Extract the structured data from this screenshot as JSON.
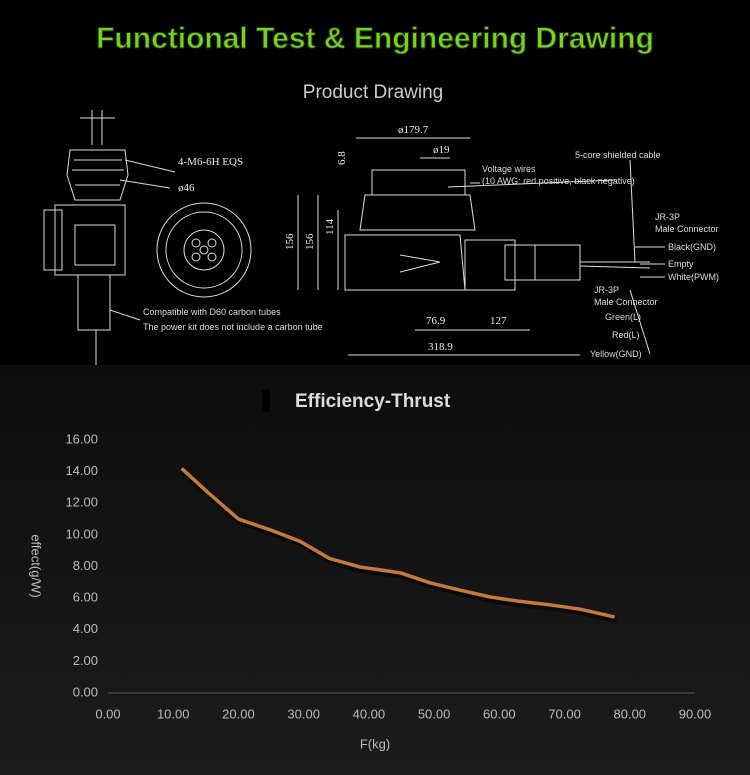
{
  "header": {
    "title": "Functional Test & Engineering Drawing"
  },
  "drawing": {
    "title": "Product Drawing",
    "labels": {
      "thread": "4-M6-6H EQS",
      "mount_dia": "ø46",
      "note1": "Compatible with D60 carbon tubes",
      "note2": "The power kit does not include a carbon tube",
      "dia_prop": "ø179.7",
      "dia_shaft": "ø19",
      "d68": "6.8",
      "h156a": "156",
      "h156b": "156",
      "h114": "114",
      "w769": "76.9",
      "w127": "127",
      "w3189": "318.9",
      "wires1": "Voltage wires",
      "wires2": "(10 AWG: red positive, black negative)",
      "cable": "5-core shielded cable",
      "jr1": "JR-3P",
      "jr1b": "Male Connector",
      "black": "Black(GND)",
      "empty": "Empty",
      "white": "White(PWM)",
      "jr2": "JR-3P",
      "jr2b": "Male Connector",
      "green": "Green(L)",
      "red": "Red(L)",
      "yellow": "Yellow(GND)"
    }
  },
  "chart_data": {
    "type": "line",
    "title": "Efficiency-Thrust",
    "x_label": "F(kg)",
    "y_label": "effect(g/W)",
    "x": [
      11.3,
      15,
      20,
      25,
      29.4,
      34,
      38.6,
      44.8,
      49.4,
      54,
      58.6,
      63,
      67.8,
      72.4,
      77.7
    ],
    "values": [
      14.2,
      12.8,
      11.0,
      10.3,
      9.6,
      8.5,
      7.97,
      7.6,
      6.96,
      6.5,
      6.07,
      5.8,
      5.57,
      5.3,
      4.8
    ],
    "color": "#c47a3c",
    "xlim": [
      0,
      90
    ],
    "ylim": [
      0,
      16
    ],
    "grid": false,
    "xticks": [
      {
        "value": 0,
        "label": "0.00"
      },
      {
        "value": 10,
        "label": "10.00"
      },
      {
        "value": 20,
        "label": "20.00"
      },
      {
        "value": 30,
        "label": "30.00"
      },
      {
        "value": 40,
        "label": "40.00"
      },
      {
        "value": 50,
        "label": "50.00"
      },
      {
        "value": 60,
        "label": "60.00"
      },
      {
        "value": 70,
        "label": "70.00"
      },
      {
        "value": 80,
        "label": "80.00"
      },
      {
        "value": 90,
        "label": "90.00"
      }
    ],
    "yticks": [
      {
        "value": 0,
        "label": "0.00"
      },
      {
        "value": 2,
        "label": "2.00"
      },
      {
        "value": 4,
        "label": "4.00"
      },
      {
        "value": 6,
        "label": "6.00"
      },
      {
        "value": 8,
        "label": "8.00"
      },
      {
        "value": 10,
        "label": "10.00"
      },
      {
        "value": 12,
        "label": "12.00"
      },
      {
        "value": 14,
        "label": "14.00"
      },
      {
        "value": 16,
        "label": "16.00"
      }
    ]
  }
}
